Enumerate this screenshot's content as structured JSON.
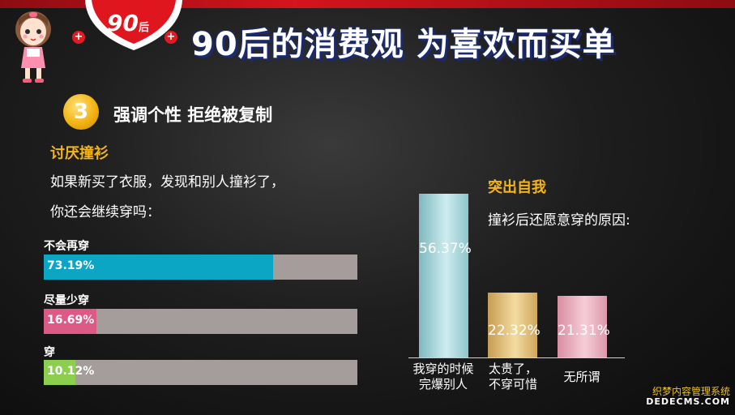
{
  "header": {
    "badge_number": "90",
    "badge_suffix": "后",
    "title": "90后的消费观 为喜欢而买单"
  },
  "section": {
    "number": "3",
    "title": "强调个性 拒绝被复制"
  },
  "left": {
    "heading": "讨厌撞衫",
    "question_line1": "如果新买了衣服，发现和别人撞衫了，",
    "question_line2": "你还会继续穿吗："
  },
  "right": {
    "heading": "突出自我",
    "subtitle": "撞衫后还愿意穿的原因:"
  },
  "colors": {
    "bar_teal": "#0aa6c4",
    "bar_pink": "#de5a86",
    "bar_green": "#8ccf4e",
    "track_grey": "#a59c9c",
    "accent_yellow": "#f4b41a"
  },
  "chart_data": [
    {
      "type": "bar",
      "orientation": "horizontal",
      "title": "如果新买了衣服，发现和别人撞衫了，你还会继续穿吗：",
      "categories": [
        "不会再穿",
        "尽量少穿",
        "穿"
      ],
      "values": [
        73.19,
        16.69,
        10.12
      ],
      "value_labels": [
        "73.19%",
        "16.69%",
        "10.12%"
      ],
      "xlim": [
        0,
        100
      ],
      "unit": "%",
      "grid": false,
      "legend": "none"
    },
    {
      "type": "bar",
      "orientation": "vertical",
      "title": "撞衫后还愿意穿的原因:",
      "categories": [
        "我穿的时候\n完爆别人",
        "太贵了，\n不穿可惜",
        "无所谓"
      ],
      "values": [
        56.37,
        22.32,
        21.31
      ],
      "value_labels": [
        "56.37%",
        "22.32%",
        "21.31%"
      ],
      "ylim": [
        0,
        60
      ],
      "unit": "%",
      "grid": false,
      "legend": "none"
    }
  ],
  "watermark": {
    "line1": "织梦内容管理系统",
    "line2": "DEDECMS.COM"
  }
}
